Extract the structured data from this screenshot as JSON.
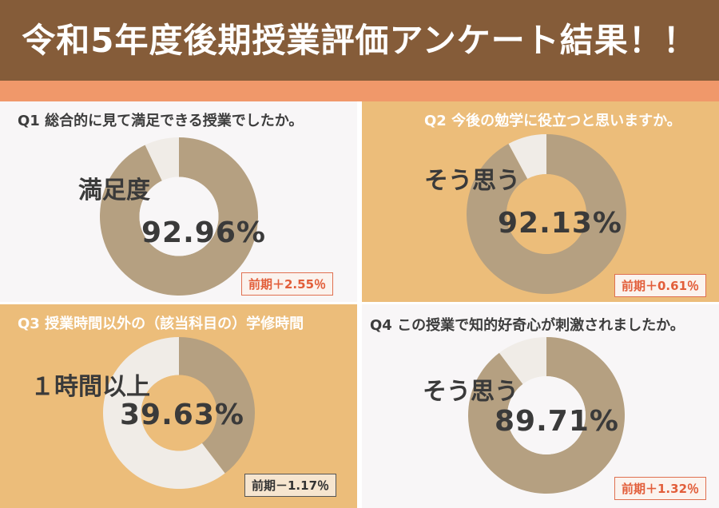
{
  "header": {
    "title": "令和5年度後期授業評価アンケート結果！！"
  },
  "colors": {
    "header_bg": "#855c39",
    "band": "#f0986a",
    "donut_main": "#b5a081",
    "donut_rest": "#f0ece7",
    "panel_light": "#f8f6f7",
    "panel_orange": "#ecbd7a",
    "badge_red": "#e25e3a"
  },
  "panels": [
    {
      "question": "Q1 総合的に見て満足できる授業でしたか。",
      "label": "満足度",
      "percent_text": "92.96%",
      "badge": "前期＋2.55％"
    },
    {
      "question": "Q2 今後の勉学に役立つと思いますか。",
      "label": "そう思う",
      "percent_text": "92.13%",
      "badge": "前期＋0.61％"
    },
    {
      "question": "Q3 授業時間以外の（該当科目の）学修時間",
      "label": "１時間以上",
      "percent_text": "39.63%",
      "badge": "前期－1.17％"
    },
    {
      "question": "Q4 この授業で知的好奇心が刺激されましたか。",
      "label": "そう思う",
      "percent_text": "89.71%",
      "badge": "前期＋1.32％"
    }
  ],
  "chart_data": [
    {
      "type": "pie",
      "categories": [
        "満足度",
        ""
      ],
      "values": [
        92.96,
        7.04
      ]
    },
    {
      "type": "pie",
      "categories": [
        "そう思う",
        ""
      ],
      "values": [
        92.13,
        7.87
      ]
    },
    {
      "type": "pie",
      "categories": [
        "１時間以上",
        ""
      ],
      "values": [
        39.63,
        60.37
      ]
    },
    {
      "type": "pie",
      "categories": [
        "そう思う",
        ""
      ],
      "values": [
        89.71,
        10.29
      ]
    }
  ]
}
